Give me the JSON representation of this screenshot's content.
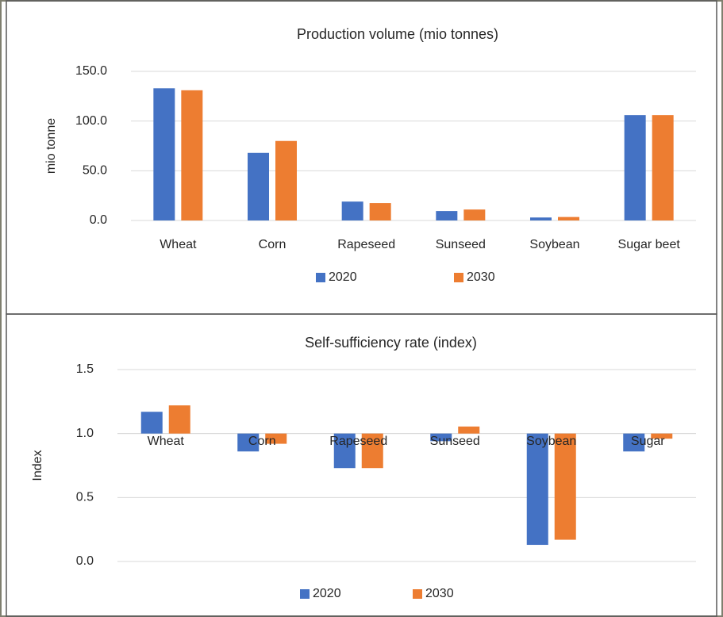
{
  "chart_data": [
    {
      "type": "bar",
      "title": "Production volume (mio tonnes)",
      "y_label": "mio tonne",
      "categories": [
        "Wheat",
        "Corn",
        "Rapeseed",
        "Sunseed",
        "Soybean",
        "Sugar beet"
      ],
      "series": [
        {
          "name": "2020",
          "color": "#4472c4",
          "values": [
            133,
            68,
            19,
            9.5,
            3,
            106
          ]
        },
        {
          "name": "2030",
          "color": "#ed7d31",
          "values": [
            131,
            80,
            17.5,
            11,
            3.5,
            106
          ]
        }
      ],
      "ylim": [
        0,
        150
      ],
      "yticks": [
        {
          "value": 0,
          "label": "0.0"
        },
        {
          "value": 50,
          "label": "50.0"
        },
        {
          "value": 100,
          "label": "100.0"
        },
        {
          "value": 150,
          "label": "150.0"
        }
      ],
      "grid": true,
      "legend": "bottom"
    },
    {
      "type": "bar",
      "title": "Self-sufficiency rate (index)",
      "y_label": "Index",
      "categories": [
        "Wheat",
        "Corn",
        "Rapeseed",
        "Sunseed",
        "Soybean",
        "Sugar"
      ],
      "series": [
        {
          "name": "2020",
          "color": "#4472c4",
          "values": [
            1.17,
            0.86,
            0.73,
            0.94,
            0.13,
            0.86
          ]
        },
        {
          "name": "2030",
          "color": "#ed7d31",
          "values": [
            1.22,
            0.92,
            0.73,
            1.055,
            0.17,
            0.96
          ]
        }
      ],
      "ylim": [
        0,
        1.5
      ],
      "yticks": [
        {
          "value": 0,
          "label": "0.0"
        },
        0.5,
        {
          "value": 1,
          "label": "1.0"
        },
        1.5
      ],
      "x_axis_at": 1,
      "grid": true,
      "legend": "bottom"
    }
  ]
}
